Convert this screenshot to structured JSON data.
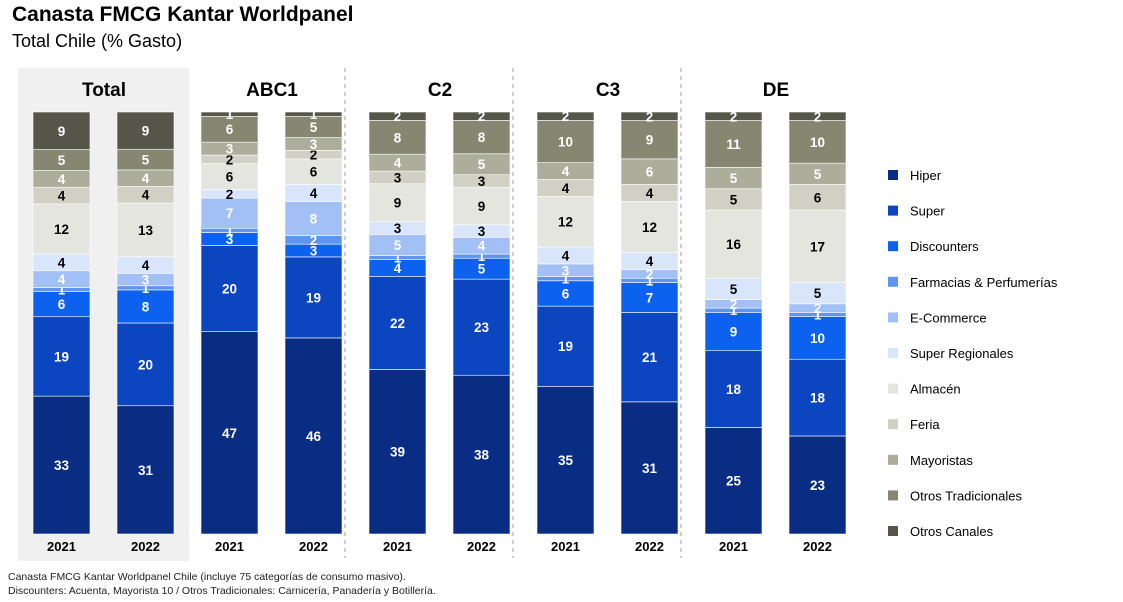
{
  "title": "Canasta FMCG Kantar Worldpanel",
  "subtitle": "Total Chile (% Gasto)",
  "footnotes": [
    "Canasta FMCG Kantar Worldpanel Chile (incluye 75 categorías de consumo masivo).",
    "Discounters: Acuenta, Mayorista 10 / Otros Tradicionales: Carnicería, Panadería y Botillería."
  ],
  "chart_data": {
    "type": "bar",
    "stacked": true,
    "normalized_percent": true,
    "groups": [
      {
        "label": "Total",
        "highlighted": true,
        "years": [
          {
            "year": "2021",
            "values": [
              33,
              19,
              6,
              1,
              4,
              4,
              12,
              4,
              4,
              5,
              9
            ]
          },
          {
            "year": "2022",
            "values": [
              31,
              20,
              8,
              1,
              3,
              4,
              13,
              4,
              4,
              5,
              9
            ]
          }
        ]
      },
      {
        "label": "ABC1",
        "years": [
          {
            "year": "2021",
            "values": [
              47,
              20,
              3,
              1,
              7,
              2,
              6,
              2,
              3,
              6,
              1
            ]
          },
          {
            "year": "2022",
            "values": [
              46,
              19,
              3,
              2,
              8,
              4,
              6,
              2,
              3,
              5,
              1
            ]
          }
        ]
      },
      {
        "label": "C2",
        "years": [
          {
            "year": "2021",
            "values": [
              39,
              22,
              4,
              1,
              5,
              3,
              9,
              3,
              4,
              8,
              2
            ]
          },
          {
            "year": "2022",
            "values": [
              38,
              23,
              5,
              1,
              4,
              3,
              9,
              3,
              5,
              8,
              2
            ]
          }
        ]
      },
      {
        "label": "C3",
        "years": [
          {
            "year": "2021",
            "values": [
              35,
              19,
              6,
              1,
              3,
              4,
              12,
              4,
              4,
              10,
              2
            ]
          },
          {
            "year": "2022",
            "values": [
              31,
              21,
              7,
              1,
              2,
              4,
              12,
              4,
              6,
              9,
              2
            ]
          }
        ]
      },
      {
        "label": "DE",
        "years": [
          {
            "year": "2021",
            "values": [
              25,
              18,
              9,
              1,
              2,
              5,
              16,
              5,
              5,
              11,
              2
            ]
          },
          {
            "year": "2022",
            "values": [
              23,
              18,
              10,
              1,
              2,
              5,
              17,
              6,
              5,
              10,
              2
            ]
          }
        ]
      }
    ],
    "series": [
      {
        "name": "Hiper",
        "color": "#0a2d84",
        "label_color": "#ffffff"
      },
      {
        "name": "Super",
        "color": "#0c45c0",
        "label_color": "#ffffff"
      },
      {
        "name": "Discounters",
        "color": "#0c62ee",
        "label_color": "#ffffff"
      },
      {
        "name": "Farmacias & Perfumerías",
        "color": "#5f95f0",
        "label_color": "#ffffff"
      },
      {
        "name": "E-Commerce",
        "color": "#a2c0f5",
        "label_color": "#ffffff"
      },
      {
        "name": "Super Regionales",
        "color": "#d8e5fb",
        "label_color": "#000000"
      },
      {
        "name": "Almacén",
        "color": "#e5e5e0",
        "label_color": "#000000"
      },
      {
        "name": "Feria",
        "color": "#d0d0c4",
        "label_color": "#000000"
      },
      {
        "name": "Mayoristas",
        "color": "#adad9b",
        "label_color": "#ffffff"
      },
      {
        "name": "Otros Tradicionales",
        "color": "#878771",
        "label_color": "#ffffff"
      },
      {
        "name": "Otros Canales",
        "color": "#55554a",
        "label_color": "#ffffff"
      }
    ],
    "legend_position": "right",
    "group_separators": "dashed"
  }
}
